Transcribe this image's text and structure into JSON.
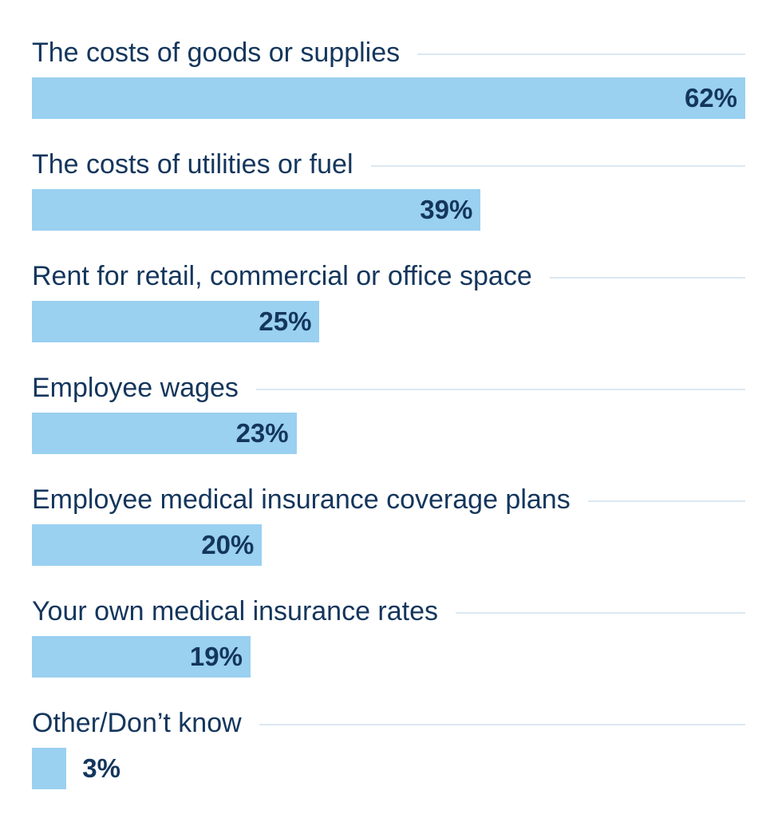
{
  "chart_data": {
    "type": "bar",
    "orientation": "horizontal",
    "categories": [
      "The costs of goods or supplies",
      "The costs of utilities or fuel",
      "Rent for retail, commercial or office space",
      "Employee wages",
      "Employee medical insurance coverage plans",
      "Your own medical insurance rates",
      "Other/Don’t know"
    ],
    "values": [
      62,
      39,
      25,
      23,
      20,
      19,
      3
    ],
    "value_labels": [
      "62%",
      "39%",
      "25%",
      "23%",
      "20%",
      "19%",
      "3%"
    ],
    "unit": "%",
    "xlim": [
      0,
      62
    ],
    "title": "",
    "xlabel": "",
    "ylabel": "",
    "grid": false,
    "legend": "none"
  },
  "colors": {
    "bar": "#9ad0f0",
    "text": "#14365c",
    "rule": "#dbe8f2"
  }
}
